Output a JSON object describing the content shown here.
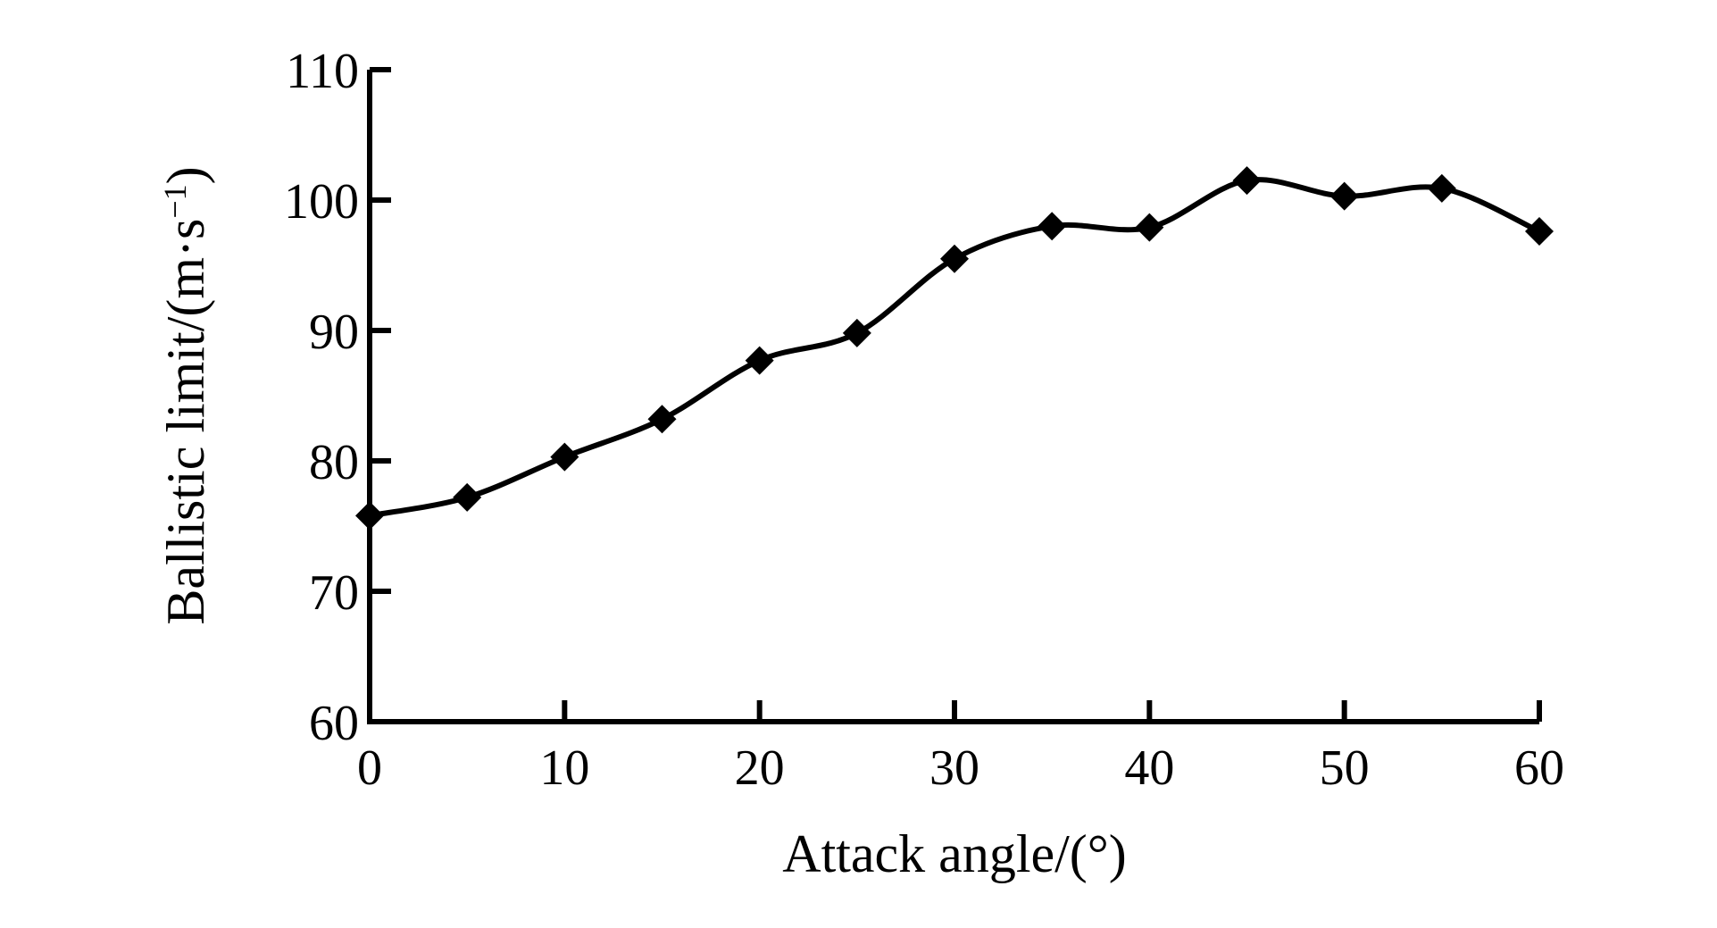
{
  "chart_data": {
    "type": "line",
    "xlabel": "Attack angle/(°)",
    "ylabel_main": "Ballistic limit/(m·s",
    "ylabel_sup": "−1",
    "ylabel_close": ")",
    "xlim": [
      0,
      60
    ],
    "ylim": [
      60,
      110
    ],
    "x_ticks": [
      0,
      10,
      20,
      30,
      40,
      50,
      60
    ],
    "x_tick_labels": [
      "0",
      "10",
      "20",
      "30",
      "40",
      "50",
      "60"
    ],
    "y_ticks": [
      60,
      70,
      80,
      90,
      100,
      110
    ],
    "y_tick_labels": [
      "60",
      "70",
      "80",
      "90",
      "100",
      "110"
    ],
    "grid": false,
    "marker": "diamond",
    "series": [
      {
        "x": [
          0,
          5,
          10,
          15,
          20,
          25,
          30,
          35,
          40,
          45,
          50,
          55,
          60
        ],
        "values": [
          75.8,
          77.2,
          80.3,
          83.2,
          87.7,
          89.8,
          95.5,
          98.0,
          97.9,
          101.5,
          100.3,
          100.9,
          97.6
        ]
      }
    ],
    "color": "#000000"
  }
}
